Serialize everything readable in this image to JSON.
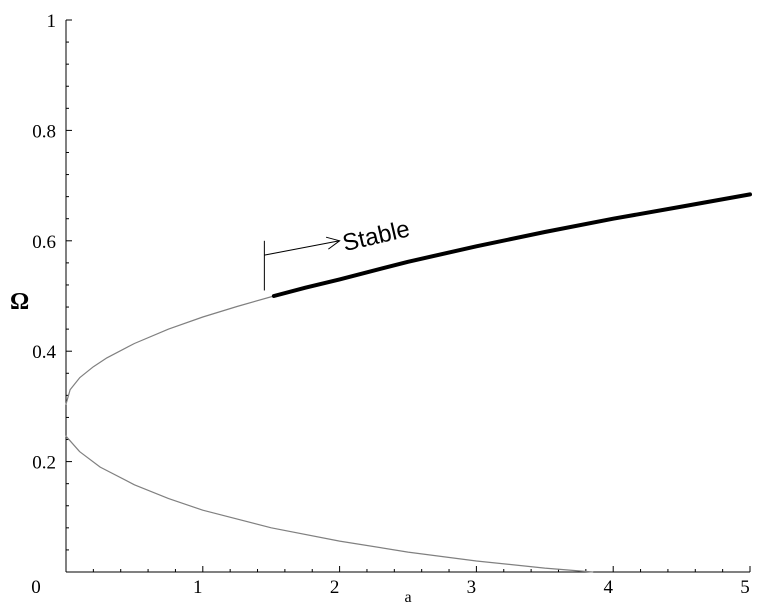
{
  "chart_data": {
    "type": "line",
    "xlabel": "a",
    "ylabel": "Ω",
    "xlim": [
      0,
      5
    ],
    "ylim": [
      0,
      1
    ],
    "xticks": [
      "0",
      "1",
      "2",
      "3",
      "4",
      "5"
    ],
    "yticks": [
      "0",
      "0.2",
      "0.4",
      "0.6",
      "0.8",
      "1"
    ],
    "grid": false,
    "series": [
      {
        "style": "thin-gray",
        "color": "#808080",
        "points": [
          [
            0.0,
            0.304
          ],
          [
            0.03,
            0.33
          ],
          [
            0.1,
            0.352
          ],
          [
            0.2,
            0.372
          ],
          [
            0.3,
            0.388
          ],
          [
            0.5,
            0.414
          ],
          [
            0.75,
            0.44
          ],
          [
            1.0,
            0.462
          ],
          [
            1.25,
            0.481
          ],
          [
            1.52,
            0.5
          ]
        ]
      },
      {
        "name": "Stable",
        "style": "thick-black",
        "color": "#000000",
        "points": [
          [
            1.52,
            0.5
          ],
          [
            1.75,
            0.515
          ],
          [
            2.0,
            0.53
          ],
          [
            2.5,
            0.562
          ],
          [
            3.0,
            0.59
          ],
          [
            3.5,
            0.616
          ],
          [
            4.0,
            0.64
          ],
          [
            4.5,
            0.662
          ],
          [
            5.0,
            0.684
          ]
        ]
      },
      {
        "style": "thin-gray",
        "color": "#808080",
        "points": [
          [
            0.0,
            0.246
          ],
          [
            0.1,
            0.218
          ],
          [
            0.25,
            0.19
          ],
          [
            0.5,
            0.158
          ],
          [
            0.75,
            0.133
          ],
          [
            1.0,
            0.112
          ],
          [
            1.5,
            0.08
          ],
          [
            2.0,
            0.056
          ],
          [
            2.5,
            0.036
          ],
          [
            3.0,
            0.02
          ],
          [
            3.5,
            0.007
          ],
          [
            3.85,
            0.0
          ]
        ]
      }
    ],
    "annotations": [
      {
        "text": "Stable",
        "x": 2.28,
        "y": 0.595,
        "rotation_deg": -13
      },
      {
        "type": "arrow",
        "from": [
          1.45,
          0.574
        ],
        "to": [
          2.0,
          0.6
        ]
      },
      {
        "type": "marker-bar",
        "x": 1.45,
        "y1": 0.51,
        "y2": 0.6
      }
    ]
  }
}
